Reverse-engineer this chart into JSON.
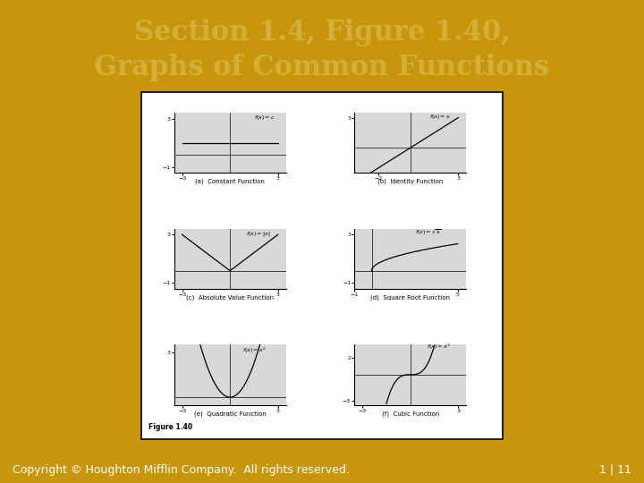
{
  "title_line1": "Section 1.4, Figure 1.40,",
  "title_line2": "Graphs of Common Functions",
  "title_color": "#D4AF37",
  "title_bg": "#1a1a1a",
  "body_bg": "#C8960C",
  "footer_text_left": "Copyright © Houghton Mifflin Company.  All rights reserved.",
  "footer_text_right": "1 | 11",
  "footer_bg": "#1a1a1a",
  "footer_color": "#ffffff",
  "panel_bg": "#ffffff",
  "subplot_bg": "#d8d8d8",
  "title_fontsize": 22,
  "footer_fontsize": 9,
  "label_fontsize": 7,
  "func_fontsize": 6
}
